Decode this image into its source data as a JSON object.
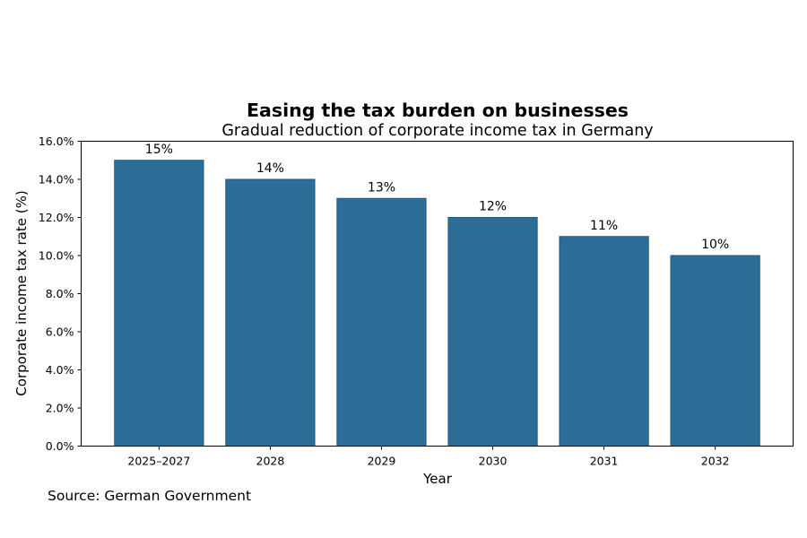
{
  "chart_data": {
    "type": "bar",
    "title": "Easing the tax burden on businesses",
    "subtitle": "Gradual reduction of corporate income tax in Germany",
    "xlabel": "Year",
    "ylabel": "Corporate income tax rate (%)",
    "categories": [
      "2025–2027",
      "2028",
      "2029",
      "2030",
      "2031",
      "2032"
    ],
    "values": [
      15,
      14,
      13,
      12,
      11,
      10
    ],
    "data_labels": [
      "15%",
      "14%",
      "13%",
      "12%",
      "11%",
      "10%"
    ],
    "ylim": [
      0,
      16
    ],
    "yticks": [
      0,
      2,
      4,
      6,
      8,
      10,
      12,
      14,
      16
    ],
    "ytick_labels": [
      "0.0%",
      "2.0%",
      "4.0%",
      "6.0%",
      "8.0%",
      "10.0%",
      "12.0%",
      "14.0%",
      "16.0%"
    ],
    "grid": false,
    "legend": "none",
    "bar_color": "#2c6e97",
    "bar_edge_color": "#1f5a80",
    "source": "Source: German Government"
  }
}
